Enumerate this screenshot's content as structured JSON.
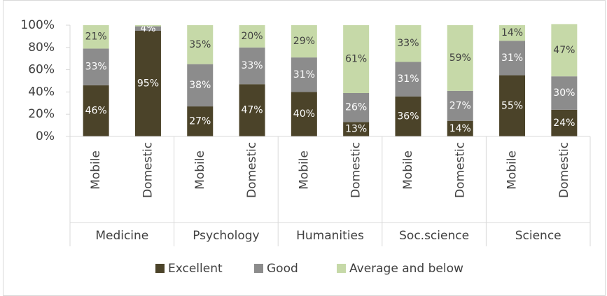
{
  "chart_data": {
    "type": "stacked_bar",
    "categories": [
      "Mobile",
      "Domestic",
      "Mobile",
      "Domestic",
      "Mobile",
      "Domestic",
      "Mobile",
      "Domestic",
      "Mobile",
      "Domestic"
    ],
    "groups": [
      "Medicine",
      "Psychology",
      "Humanities",
      "Soc.science",
      "Science"
    ],
    "series": [
      {
        "name": "Excellent",
        "color": "#4b4329",
        "label_color": "#ffffff",
        "values": [
          46,
          95,
          27,
          47,
          40,
          13,
          36,
          14,
          55,
          24
        ],
        "value_labels": [
          "46%",
          "95%",
          "27%",
          "47%",
          "40%",
          "13%",
          "36%",
          "14%",
          "55%",
          "24%"
        ]
      },
      {
        "name": "Good",
        "color": "#8c8c8c",
        "label_color": "#ffffff",
        "values": [
          33,
          4,
          38,
          33,
          31,
          26,
          31,
          27,
          31,
          30
        ],
        "value_labels": [
          "33%",
          "4%",
          "38%",
          "33%",
          "31%",
          "26%",
          "31%",
          "27%",
          "31%",
          "30%"
        ]
      },
      {
        "name": "Average and below",
        "color": "#c6d9a8",
        "label_color": "#404040",
        "values": [
          21,
          1,
          35,
          20,
          29,
          61,
          33,
          59,
          14,
          47
        ],
        "value_labels": [
          "21%",
          null,
          "35%",
          "20%",
          "29%",
          "61%",
          "33%",
          "59%",
          "14%",
          "47%"
        ]
      }
    ],
    "ylim": [
      0,
      100
    ],
    "yticks": [
      {
        "value": 0,
        "label": "0%"
      },
      {
        "value": 20,
        "label": "20%"
      },
      {
        "value": 40,
        "label": "40%"
      },
      {
        "value": 60,
        "label": "60%"
      },
      {
        "value": 80,
        "label": "80%"
      },
      {
        "value": 100,
        "label": "100%"
      }
    ],
    "legend": "bottom"
  }
}
